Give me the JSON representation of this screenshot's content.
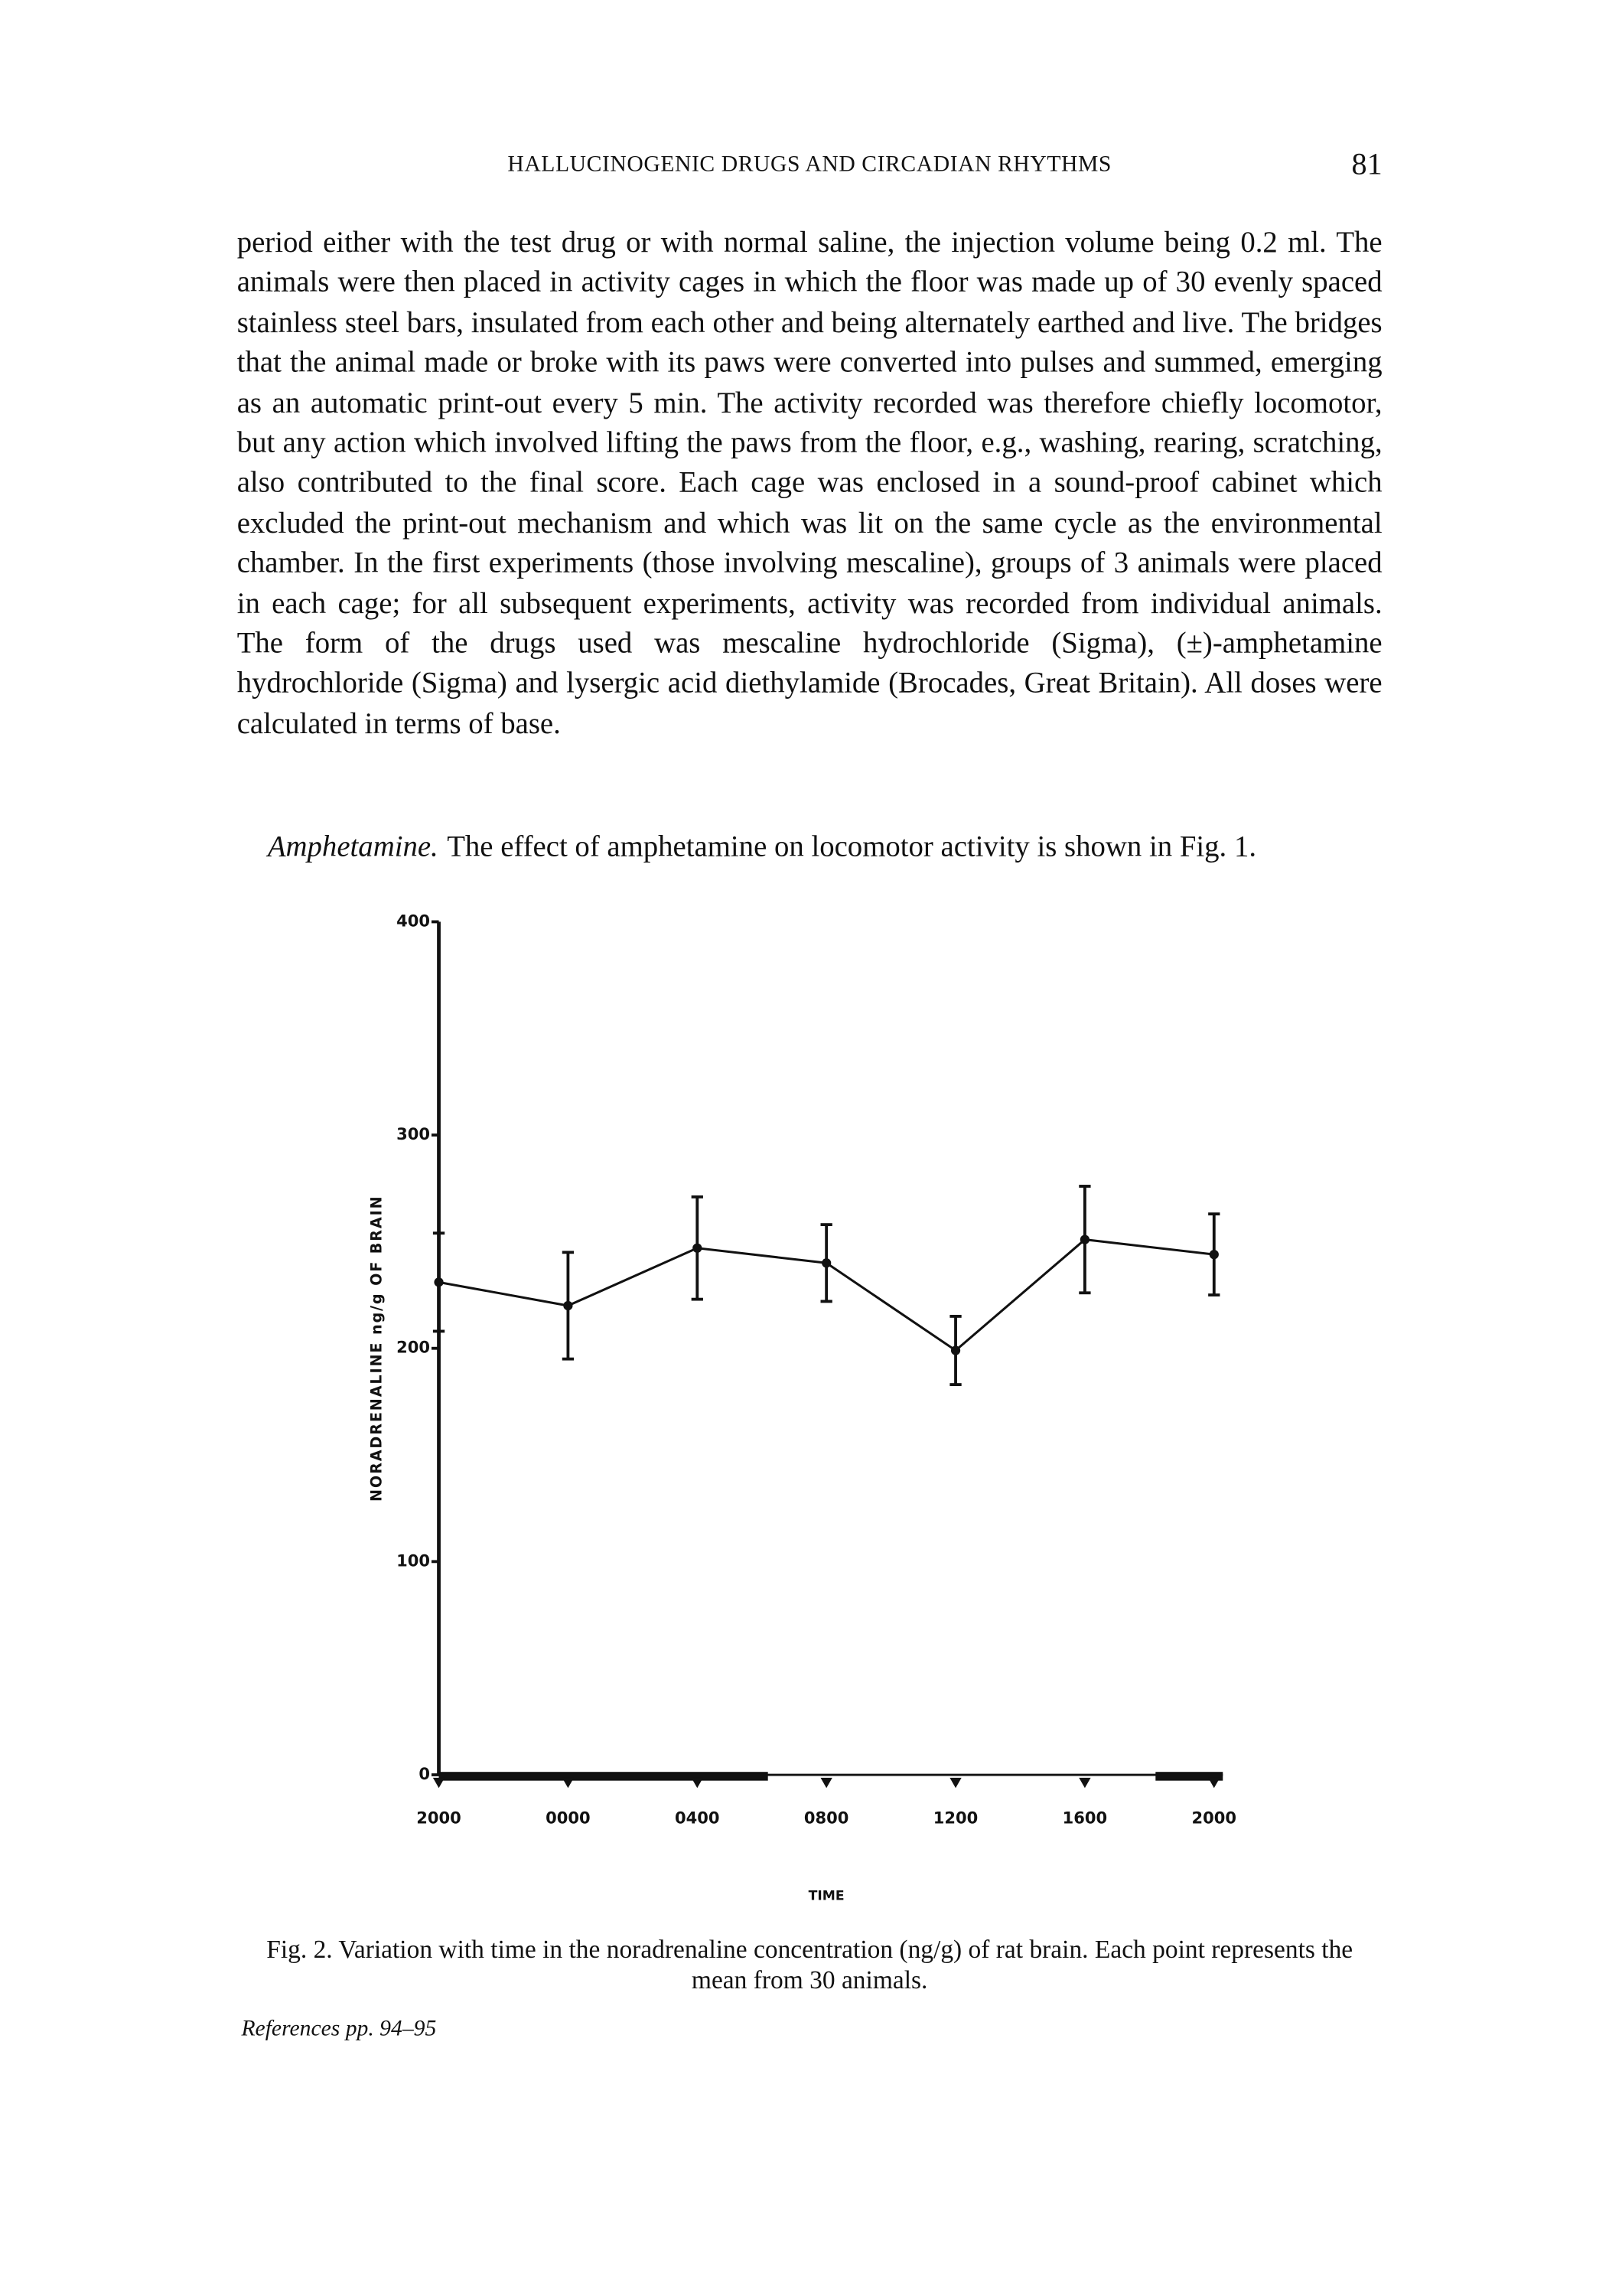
{
  "header": {
    "title": "HALLUCINOGENIC DRUGS AND CIRCADIAN RHYTHMS",
    "page": "81"
  },
  "paragraphs": [
    "period either with the test drug or with normal saline, the injection volume being 0.2 ml. The animals were then placed in activity cages in which the floor was made up of 30 evenly spaced stainless steel bars, insulated from each other and being alternately earthed and live. The bridges that the animal made or broke with its paws were converted into pulses and summed, emerging as an automatic print-out every 5 min. The activity recorded was therefore chiefly locomotor, but any action which involved lifting the paws from the floor, e.g., washing, rearing, scratching, also contributed to the final score. Each cage was enclosed in a sound-proof cabinet which excluded the print-out mechanism and which was lit on the same cycle as the environmental chamber. In the first experiments (those involving mescaline), groups of 3 animals were placed in each cage; for all subsequent experiments, activity was recorded from individual animals. The form of the drugs used was mescaline hydrochloride (Sigma), (±)-amphetamine hydrochloride (Sigma) and lysergic acid diethylamide (Brocades, Great Britain). All doses were calculated in terms of base."
  ],
  "section": {
    "heading": "Amphetamine.",
    "text": "The effect of amphetamine on locomotor activity is shown in Fig. 1."
  },
  "chart_data": {
    "type": "line",
    "x_label": "TIME",
    "y_label": "NORADRENALINE ng/g OF BRAIN",
    "categories": [
      "2000",
      "0000",
      "0400",
      "0800",
      "1200",
      "1600",
      "2000"
    ],
    "values": [
      231,
      220,
      247,
      240,
      199,
      251,
      244
    ],
    "errors": [
      23,
      25,
      24,
      18,
      16,
      25,
      19
    ],
    "color": "#111111",
    "ylim": [
      0,
      400
    ],
    "yticks": [
      0,
      100,
      200,
      300,
      400
    ]
  },
  "caption": "Fig. 2. Variation with time in the noradrenaline concentration (ng/g) of rat brain. Each point represents the mean from 30 animals.",
  "footer": "References pp. 94–95"
}
